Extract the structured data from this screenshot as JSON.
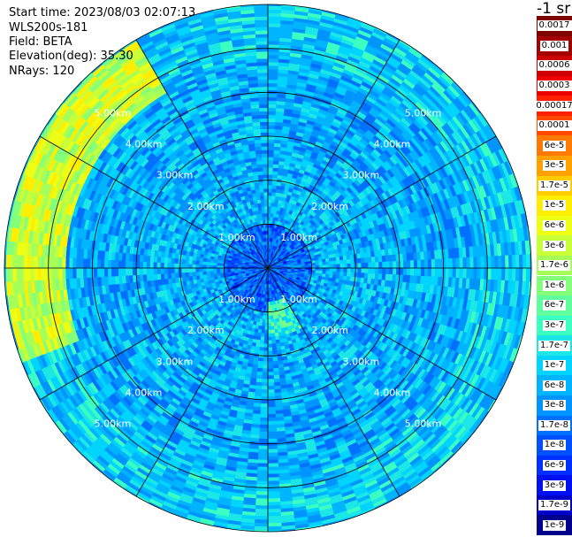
{
  "info": {
    "start_time": "Start time: 2023/08/03 02:07:13",
    "instrument": "WLS200s-181",
    "field": "Field: BETA",
    "elevation": "Elevation(deg): 35.30",
    "nrays": "NRays: 120"
  },
  "colorbar": {
    "unit": "-1 sr",
    "levels": [
      {
        "label": "0.0017",
        "color": "#800000"
      },
      {
        "label": "0.001",
        "color": "#a40000"
      },
      {
        "label": "0.0006",
        "color": "#cc0000"
      },
      {
        "label": "0.0003",
        "color": "#ee0000"
      },
      {
        "label": "0.00017",
        "color": "#ff2000"
      },
      {
        "label": "0.0001",
        "color": "#ff4a00"
      },
      {
        "label": "6e-5",
        "color": "#ff7a00"
      },
      {
        "label": "3e-5",
        "color": "#ffa200"
      },
      {
        "label": "1.7e-5",
        "color": "#ffcc00"
      },
      {
        "label": "1e-5",
        "color": "#ffee00"
      },
      {
        "label": "6e-6",
        "color": "#ecff14"
      },
      {
        "label": "3e-6",
        "color": "#c8ff36"
      },
      {
        "label": "1.7e-6",
        "color": "#a6ff58"
      },
      {
        "label": "1e-6",
        "color": "#84ff7a"
      },
      {
        "label": "6e-7",
        "color": "#60ff9e"
      },
      {
        "label": "3e-7",
        "color": "#3cffc2"
      },
      {
        "label": "1.7e-7",
        "color": "#1ce6e6"
      },
      {
        "label": "1e-7",
        "color": "#00d4ff"
      },
      {
        "label": "6e-8",
        "color": "#00b4ff"
      },
      {
        "label": "3e-8",
        "color": "#0094ff"
      },
      {
        "label": "1.7e-8",
        "color": "#0070ff"
      },
      {
        "label": "1e-8",
        "color": "#0050ff"
      },
      {
        "label": "6e-9",
        "color": "#0030ff"
      },
      {
        "label": "3e-9",
        "color": "#0010f0"
      },
      {
        "label": "1.7e-9",
        "color": "#0000c8"
      },
      {
        "label": "1e-9",
        "color": "#00008c"
      }
    ]
  },
  "chart_data": {
    "type": "heatmap",
    "projection": "polar (PPI)",
    "field": "BETA",
    "elevation_deg": 35.3,
    "n_rays": 120,
    "start_time": "2023/08/03 02:07:13",
    "range_rings_km": [
      1.0,
      2.0,
      3.0,
      4.0,
      5.0
    ],
    "range_ring_labels": [
      "1.00km",
      "2.00km",
      "3.00km",
      "4.00km",
      "5.00km"
    ],
    "azimuth_spokes_deg": [
      0,
      30,
      60,
      90,
      120,
      150,
      180,
      210,
      240,
      270,
      300,
      330
    ],
    "max_range_km": 6.0,
    "color_scale": "log",
    "value_range": [
      1e-09,
      0.0017
    ],
    "radial_profile": [
      {
        "range_km": [
          0.0,
          1.0
        ],
        "typical_value": 1.7e-08
      },
      {
        "range_km": [
          1.0,
          3.0
        ],
        "typical_value": 6e-08
      },
      {
        "range_km": [
          3.0,
          4.8
        ],
        "typical_value": 6e-08
      },
      {
        "range_km": [
          4.8,
          6.0
        ],
        "typical_value": 1e-07
      }
    ],
    "features": [
      {
        "description": "enhanced backscatter near outer edge",
        "azimuth_deg": [
          250,
          330
        ],
        "range_km": [
          4.6,
          6.0
        ],
        "typical_value": 3e-06
      },
      {
        "description": "enhanced backscatter patch",
        "azimuth_deg": [
          150,
          180
        ],
        "range_km": [
          0.8,
          1.6
        ],
        "typical_value": 3e-07
      }
    ]
  }
}
